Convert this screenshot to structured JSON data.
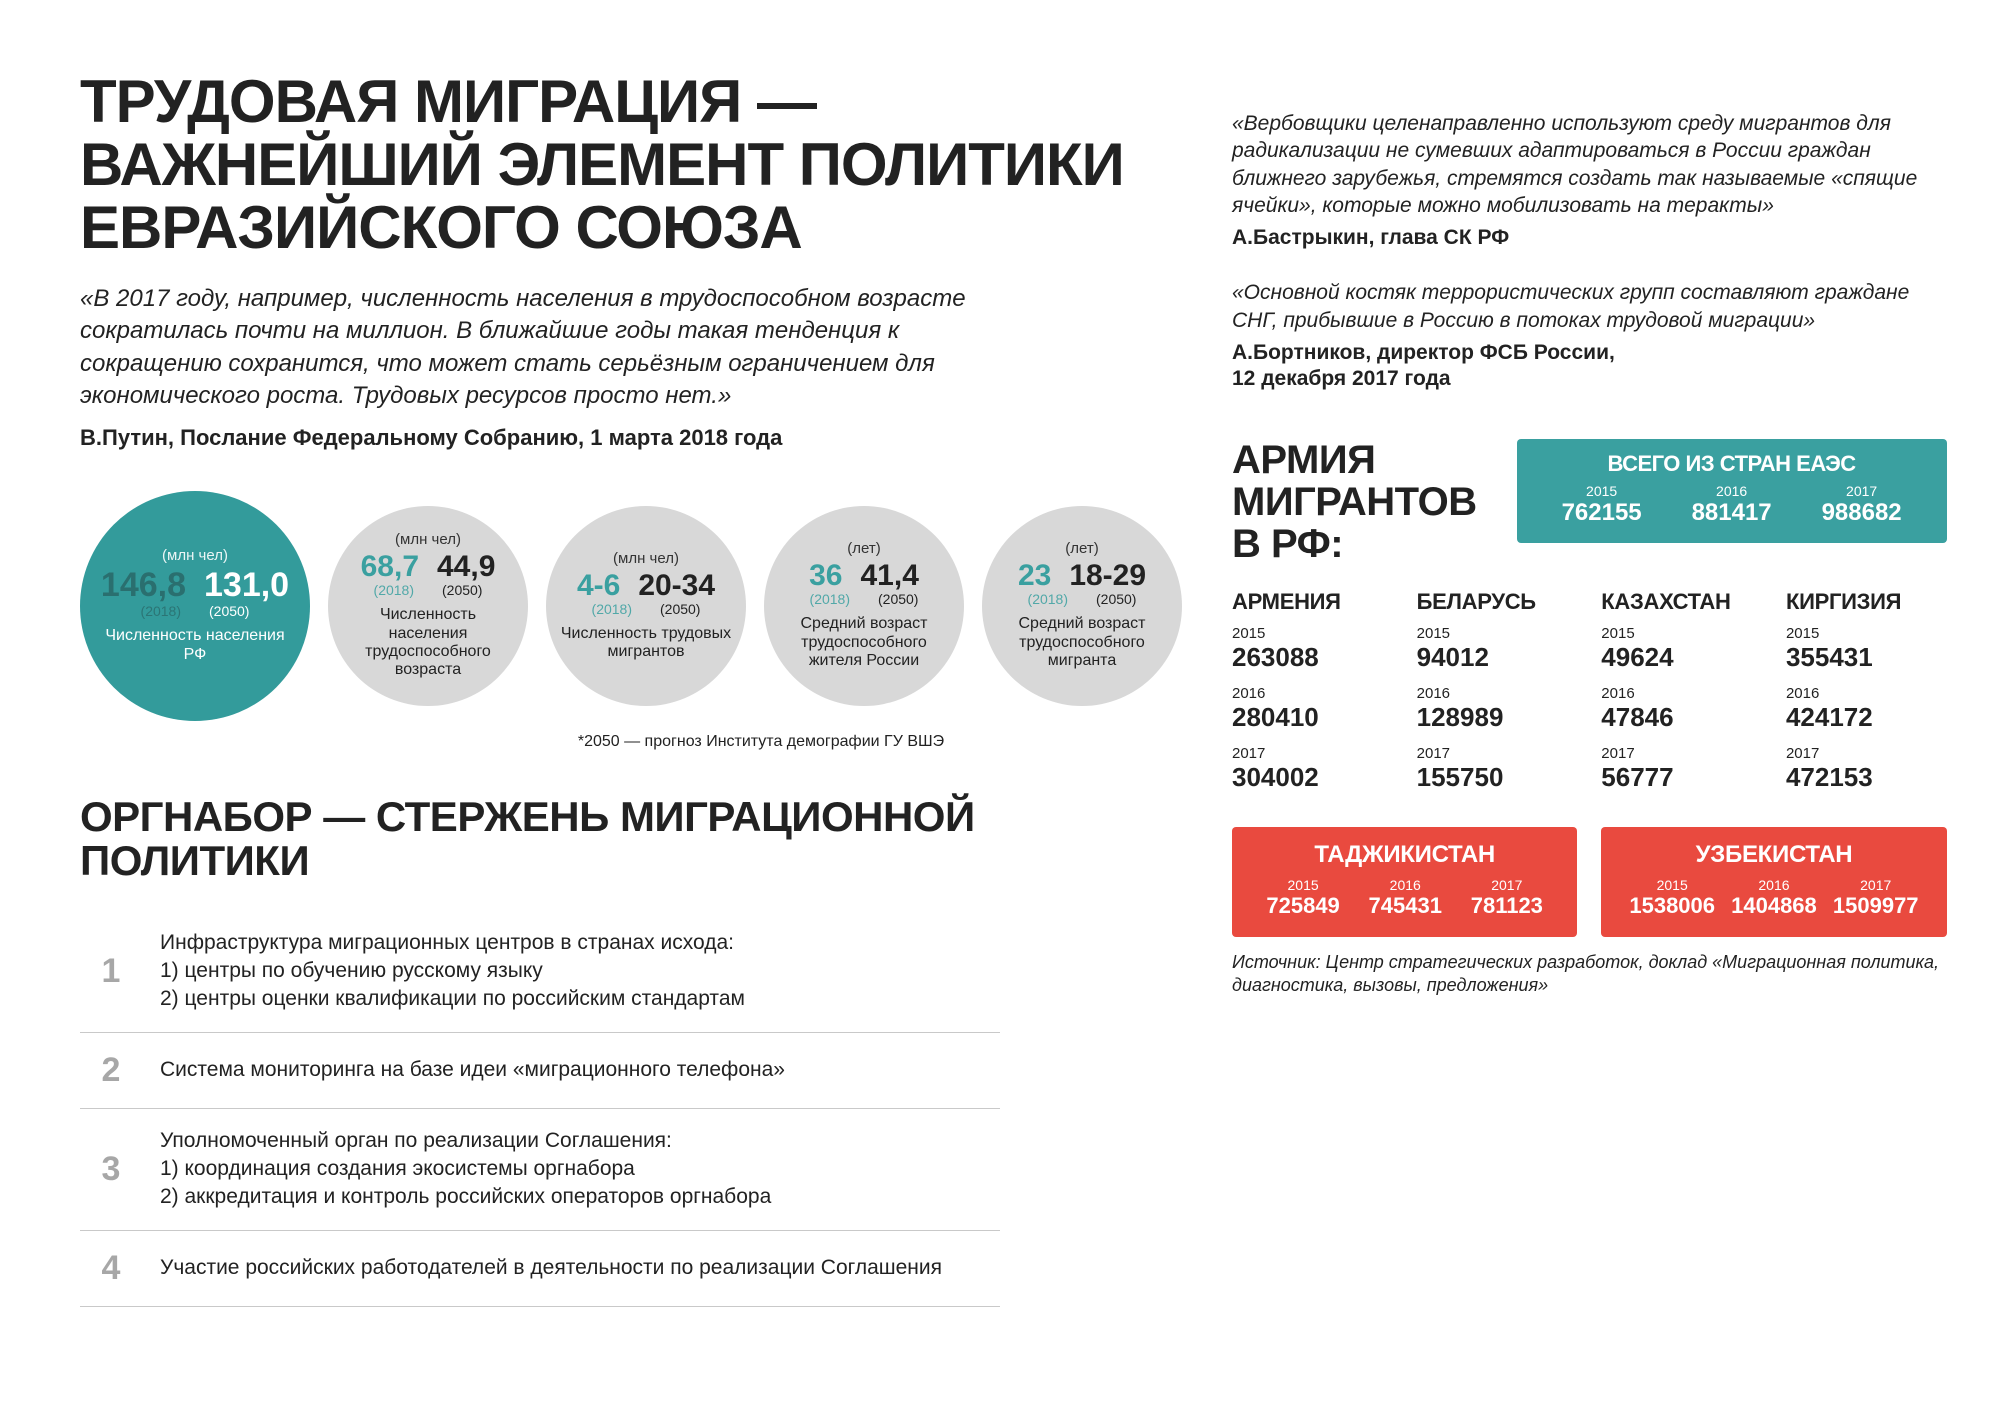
{
  "colors": {
    "teal": "#339b9b",
    "gray_circle": "#d8d8d8",
    "text_dark": "#222222",
    "gray_num": "#a7a7a7",
    "teal_num": "#3aa0a0",
    "red_box": "#e94a3f",
    "teal_box": "#3aa0a0"
  },
  "title": "ТРУДОВАЯ МИГРАЦИЯ — ВАЖНЕЙШИЙ ЭЛЕМЕНТ ПОЛИТИКИ ЕВРАЗИЙСКОГО СОЮЗА",
  "main_quote": "«В 2017 году, например, численность населения в трудоспособном возрасте сократилась почти на миллион. В ближайшие годы такая тенденция к сокращению сохранится, что может стать серьёзным ограничением для экономического роста. Трудовых ресурсов просто нет.»",
  "main_attribution": "В.Путин, Послание  Федеральному Собранию, 1 марта 2018 года",
  "circles": [
    {
      "unit": "(млн чел)",
      "v2018": "146,8",
      "v2050": "131,0",
      "y1": "(2018)",
      "y2": "(2050)",
      "label": "Численность населения РФ",
      "bg": "#339b9b",
      "fg": "#ffffff",
      "size": "c1"
    },
    {
      "unit": "(млн чел)",
      "v2018": "68,7",
      "v2050": "44,9",
      "y1": "(2018)",
      "y2": "(2050)",
      "label": "Численность населения трудоспособного возраста",
      "bg": "#d8d8d8",
      "fg": "#222222",
      "size": "c-rest"
    },
    {
      "unit": "(млн чел)",
      "v2018": "4-6",
      "v2050": "20-34",
      "y1": "(2018)",
      "y2": "(2050)",
      "label": "Численность трудовых мигрантов",
      "bg": "#d8d8d8",
      "fg": "#222222",
      "size": "c-rest"
    },
    {
      "unit": "(лет)",
      "v2018": "36",
      "v2050": "41,4",
      "y1": "(2018)",
      "y2": "(2050)",
      "label": "Средний возраст трудоспособного жителя России",
      "bg": "#d8d8d8",
      "fg": "#222222",
      "size": "c-rest"
    },
    {
      "unit": "(лет)",
      "v2018": "23",
      "v2050": "18-29",
      "y1": "(2018)",
      "y2": "(2050)",
      "label": "Средний возраст трудоспособного мигранта",
      "bg": "#d8d8d8",
      "fg": "#222222",
      "size": "c-rest"
    }
  ],
  "circles_footnote": "*2050 — прогноз Института демографии ГУ ВШЭ",
  "orgnabor_title": "ОРГНАБОР — СТЕРЖЕНЬ МИГРАЦИОННОЙ ПОЛИТИКИ",
  "orgnabor_items": [
    {
      "n": "1",
      "text": "Инфраструктура миграционных центров в странах исхода:\n1) центры по обучению русскому языку\n2) центры оценки квалификации по российским стандартам"
    },
    {
      "n": "2",
      "text": "Система мониторинга на базе идеи «миграционного телефона»"
    },
    {
      "n": "3",
      "text": "Уполномоченный орган по реализации Соглашения:\n1) координация создания экосистемы оргнабора\n2) аккредитация и контроль российских операторов оргнабора"
    },
    {
      "n": "4",
      "text": "Участие российских работодателей в деятельности по реализации Соглашения"
    }
  ],
  "right_quotes": [
    {
      "q": "«Вербовщики целенаправленно используют среду мигрантов для радикализации не сумевших адаптироваться в России граждан ближнего зарубежья, стремятся создать так называемые «спящие ячейки», которые можно мобилизовать на теракты»",
      "a": "А.Бастрыкин, глава СК РФ"
    },
    {
      "q": "«Основной костяк террористических групп составляют граждане СНГ, прибывшие в Россию в потоках трудовой миграции»",
      "a": "А.Бортников, директор ФСБ России,\n12 декабря 2017 года"
    }
  ],
  "army_title": "АРМИЯ МИГРАНТОВ В РФ:",
  "army_total": {
    "label": "ВСЕГО ИЗ СТРАН ЕАЭС",
    "years": [
      "2015",
      "2016",
      "2017"
    ],
    "values": [
      "762155",
      "881417",
      "988682"
    ]
  },
  "countries": [
    {
      "name": "АРМЕНИЯ",
      "rows": [
        [
          "2015",
          "263088"
        ],
        [
          "2016",
          "280410"
        ],
        [
          "2017",
          "304002"
        ]
      ]
    },
    {
      "name": "БЕЛАРУСЬ",
      "rows": [
        [
          "2015",
          "94012"
        ],
        [
          "2016",
          "128989"
        ],
        [
          "2017",
          "155750"
        ]
      ]
    },
    {
      "name": "КАЗАХСТАН",
      "rows": [
        [
          "2015",
          "49624"
        ],
        [
          "2016",
          "47846"
        ],
        [
          "2017",
          "56777"
        ]
      ]
    },
    {
      "name": "КИРГИЗИЯ",
      "rows": [
        [
          "2015",
          "355431"
        ],
        [
          "2016",
          "424172"
        ],
        [
          "2017",
          "472153"
        ]
      ]
    }
  ],
  "red_countries": [
    {
      "name": "ТАДЖИКИСТАН",
      "years": [
        "2015",
        "2016",
        "2017"
      ],
      "values": [
        "725849",
        "745431",
        "781123"
      ]
    },
    {
      "name": "УЗБЕКИСТАН",
      "years": [
        "2015",
        "2016",
        "2017"
      ],
      "values": [
        "1538006",
        "1404868",
        "1509977"
      ]
    }
  ],
  "source": "Источник: Центр стратегических разработок, доклад «Миграционная политика, диагностика, вызовы, предложения»"
}
